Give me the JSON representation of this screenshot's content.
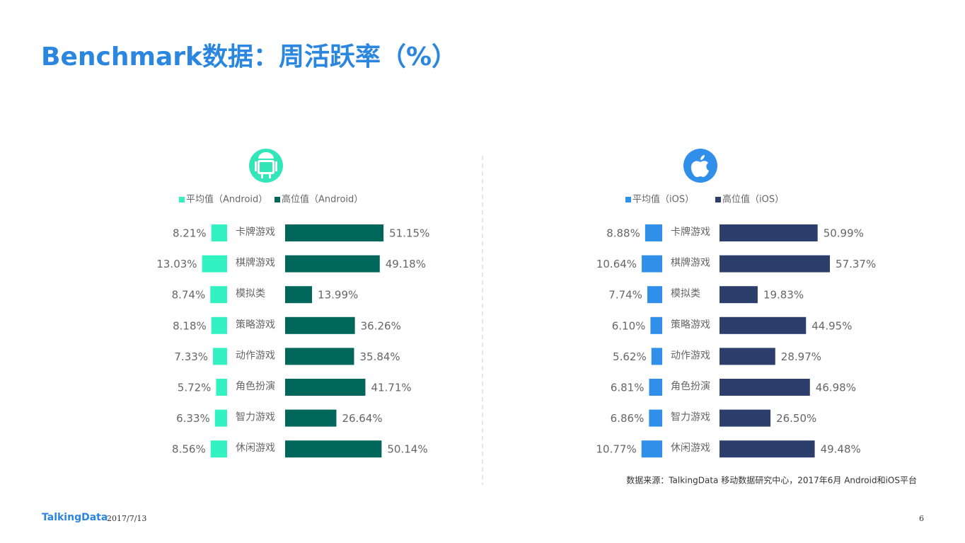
{
  "title": "Benchmark数据：周活跃率（%）",
  "chart_data": [
    {
      "type": "bar",
      "categories": [
        "卡牌游戏",
        "棋牌游戏",
        "模拟类",
        "策略游戏",
        "动作游戏",
        "角色扮演",
        "智力游戏",
        "休闲游戏"
      ],
      "series": [
        {
          "name": "平均值（Android）",
          "color": "#33f2c2",
          "values": [
            8.21,
            13.03,
            8.74,
            8.18,
            7.33,
            5.72,
            6.33,
            8.56
          ],
          "value_labels": [
            "8.21%",
            "13.03%",
            "8.74%",
            "8.18%",
            "7.33%",
            "5.72%",
            "6.33%",
            "8.56%"
          ]
        },
        {
          "name": "高位值（Android）",
          "color": "#00675a",
          "values": [
            51.15,
            49.18,
            13.99,
            36.26,
            35.84,
            41.71,
            26.64,
            50.14
          ],
          "value_labels": [
            "51.15%",
            "49.18%",
            "13.99%",
            "36.26%",
            "35.84%",
            "41.71%",
            "26.64%",
            "50.14%"
          ]
        }
      ]
    },
    {
      "type": "bar",
      "categories": [
        "卡牌游戏",
        "棋牌游戏",
        "模拟类",
        "策略游戏",
        "动作游戏",
        "角色扮演",
        "智力游戏",
        "休闲游戏"
      ],
      "series": [
        {
          "name": "平均值（iOS）",
          "color": "#2f8fe9",
          "values": [
            8.88,
            10.64,
            7.74,
            6.1,
            5.62,
            6.81,
            6.86,
            10.77
          ],
          "value_labels": [
            "8.88%",
            "10.64%",
            "7.74%",
            "6.10%",
            "5.62%",
            "6.81%",
            "6.86%",
            "10.77%"
          ]
        },
        {
          "name": "高位值（iOS）",
          "color": "#2c3e6b",
          "values": [
            50.99,
            57.37,
            19.83,
            44.95,
            28.97,
            46.98,
            26.5,
            49.48
          ],
          "value_labels": [
            "50.99%",
            "57.37%",
            "19.83%",
            "44.95%",
            "28.97%",
            "46.98%",
            "26.50%",
            "49.48%"
          ]
        }
      ]
    }
  ],
  "source": "数据来源：TalkingData 移动数据研究中心，2017年6月 Android和iOS平台",
  "footer": {
    "brand": "TalkingData",
    "date": "2017/7/13",
    "page": "6"
  }
}
